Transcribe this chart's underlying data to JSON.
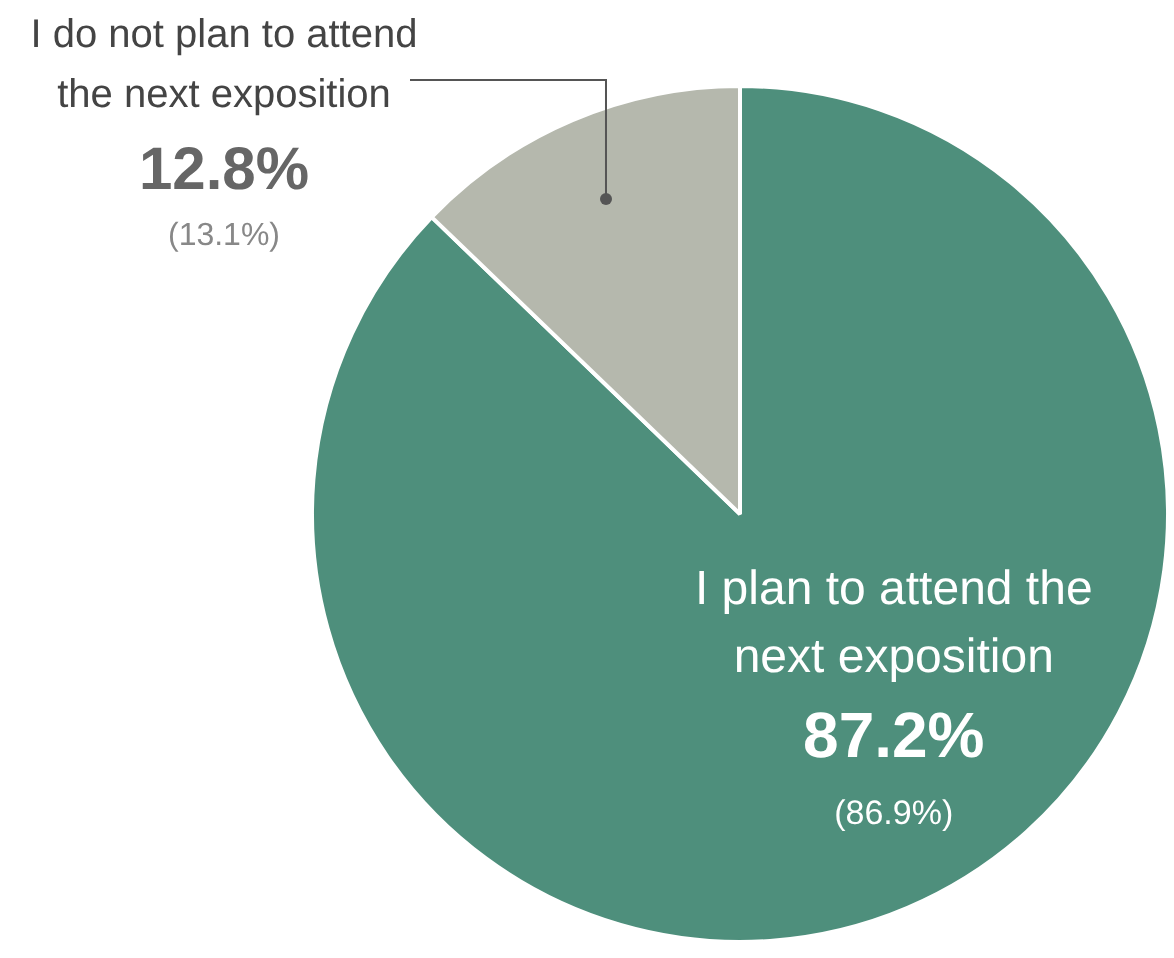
{
  "chart_data": {
    "type": "pie",
    "categories": [
      "I plan to attend the next exposition",
      "I do not plan to attend the next exposition"
    ],
    "values": [
      87.2,
      12.8
    ],
    "colors": [
      "#4e8f7c",
      "#b5b8ad"
    ],
    "value_labels": [
      "87.2%",
      "12.8%"
    ],
    "annotations": [
      "(86.9%)",
      "(13.1%)"
    ],
    "legend": false
  }
}
